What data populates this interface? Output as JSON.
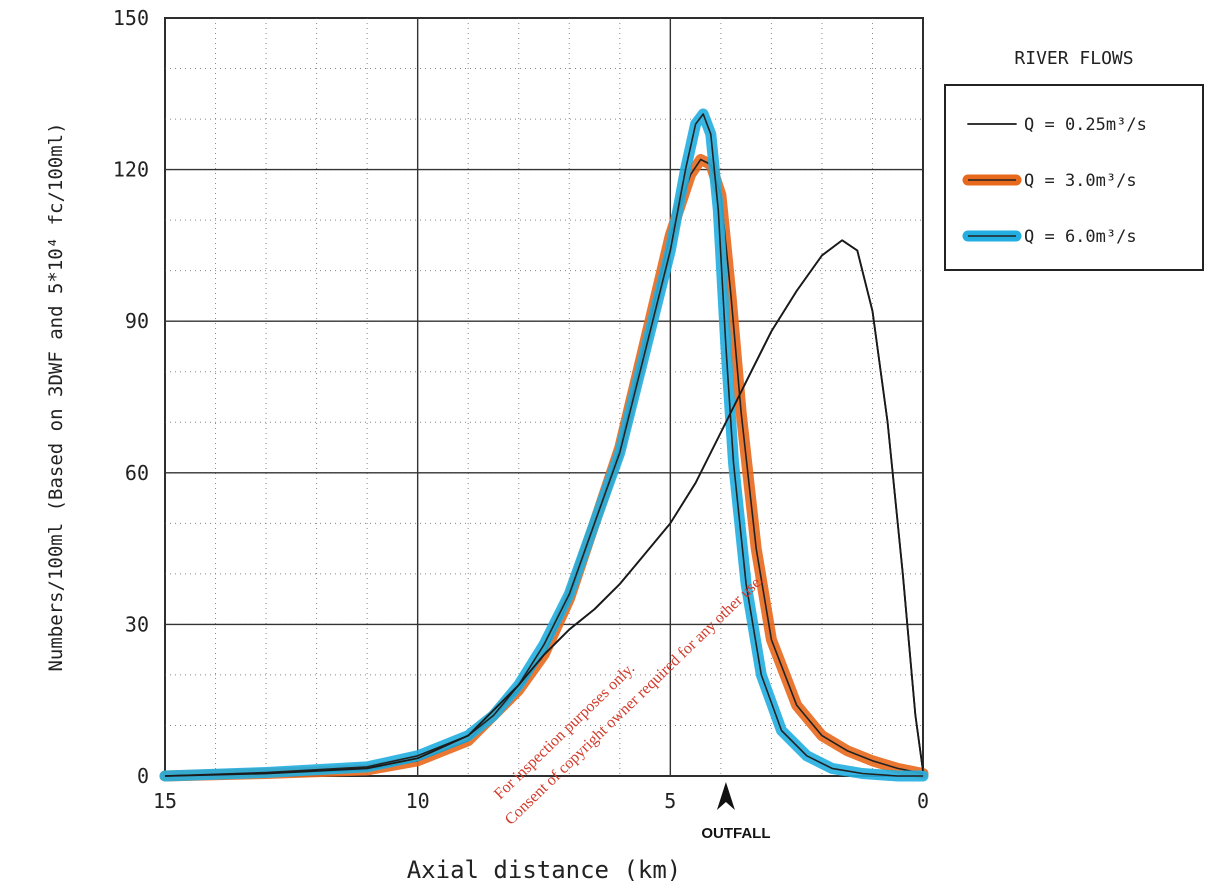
{
  "chart_data": {
    "type": "line",
    "xlabel": "Axial distance (km)",
    "ylabel": "Numbers/100ml (Based on 3DWF and 5*10⁴ fc/100ml)",
    "xlim": [
      15,
      0
    ],
    "ylim": [
      0,
      150
    ],
    "x_reversed": true,
    "x_ticks": [
      15,
      10,
      5,
      0
    ],
    "y_ticks": [
      0,
      30,
      60,
      90,
      120,
      150
    ],
    "grid": true,
    "legend_title": "RIVER FLOWS",
    "legend_position": "right",
    "series": [
      {
        "name": "Q = 0.25m³/s",
        "color": "#1a1a1a",
        "points": [
          [
            15,
            0
          ],
          [
            13,
            0.5
          ],
          [
            11,
            1.5
          ],
          [
            10,
            3.5
          ],
          [
            9,
            8
          ],
          [
            8.5,
            13
          ],
          [
            8,
            18
          ],
          [
            7.5,
            24
          ],
          [
            7,
            29
          ],
          [
            6.5,
            33
          ],
          [
            6,
            38
          ],
          [
            5.5,
            44
          ],
          [
            5,
            50
          ],
          [
            4.5,
            58
          ],
          [
            4,
            68
          ],
          [
            3.5,
            78
          ],
          [
            3,
            88
          ],
          [
            2.5,
            96
          ],
          [
            2,
            103
          ],
          [
            1.6,
            106
          ],
          [
            1.3,
            104
          ],
          [
            1,
            92
          ],
          [
            0.7,
            70
          ],
          [
            0.4,
            40
          ],
          [
            0.15,
            12
          ],
          [
            0,
            1
          ]
        ]
      },
      {
        "name": "Q = 3.0m³/s",
        "color": "#e8681c",
        "points": [
          [
            15,
            0
          ],
          [
            13,
            0.5
          ],
          [
            11,
            1.2
          ],
          [
            10,
            3
          ],
          [
            9,
            7
          ],
          [
            8.5,
            12
          ],
          [
            8,
            17
          ],
          [
            7.5,
            24
          ],
          [
            7,
            35
          ],
          [
            6.5,
            50
          ],
          [
            6,
            65
          ],
          [
            5.5,
            86
          ],
          [
            5,
            107
          ],
          [
            4.6,
            119
          ],
          [
            4.4,
            122
          ],
          [
            4.2,
            121
          ],
          [
            4,
            115
          ],
          [
            3.8,
            95
          ],
          [
            3.6,
            72
          ],
          [
            3.3,
            45
          ],
          [
            3,
            27
          ],
          [
            2.5,
            14
          ],
          [
            2,
            8
          ],
          [
            1.5,
            5
          ],
          [
            1,
            3
          ],
          [
            0.5,
            1.5
          ],
          [
            0,
            0.5
          ]
        ]
      },
      {
        "name": "Q = 6.0m³/s",
        "color": "#22aee0",
        "points": [
          [
            15,
            0
          ],
          [
            13,
            0.7
          ],
          [
            11,
            1.8
          ],
          [
            10,
            4
          ],
          [
            9,
            8
          ],
          [
            8.5,
            12
          ],
          [
            8,
            18
          ],
          [
            7.5,
            26
          ],
          [
            7,
            36
          ],
          [
            6.5,
            50
          ],
          [
            6,
            64
          ],
          [
            5.5,
            84
          ],
          [
            5,
            104
          ],
          [
            4.7,
            120
          ],
          [
            4.5,
            129
          ],
          [
            4.35,
            131
          ],
          [
            4.2,
            127
          ],
          [
            4.05,
            112
          ],
          [
            3.9,
            85
          ],
          [
            3.75,
            62
          ],
          [
            3.5,
            38
          ],
          [
            3.2,
            20
          ],
          [
            2.8,
            9
          ],
          [
            2.3,
            4
          ],
          [
            1.8,
            1.5
          ],
          [
            1.2,
            0.5
          ],
          [
            0.5,
            0
          ],
          [
            0,
            0
          ]
        ]
      }
    ],
    "annotations": {
      "outfall_label": "OUTFALL",
      "outfall_x": 3.9
    }
  },
  "watermark": {
    "line1": "For inspection purposes only.",
    "line2": "Consent of copyright owner required for any other use."
  }
}
